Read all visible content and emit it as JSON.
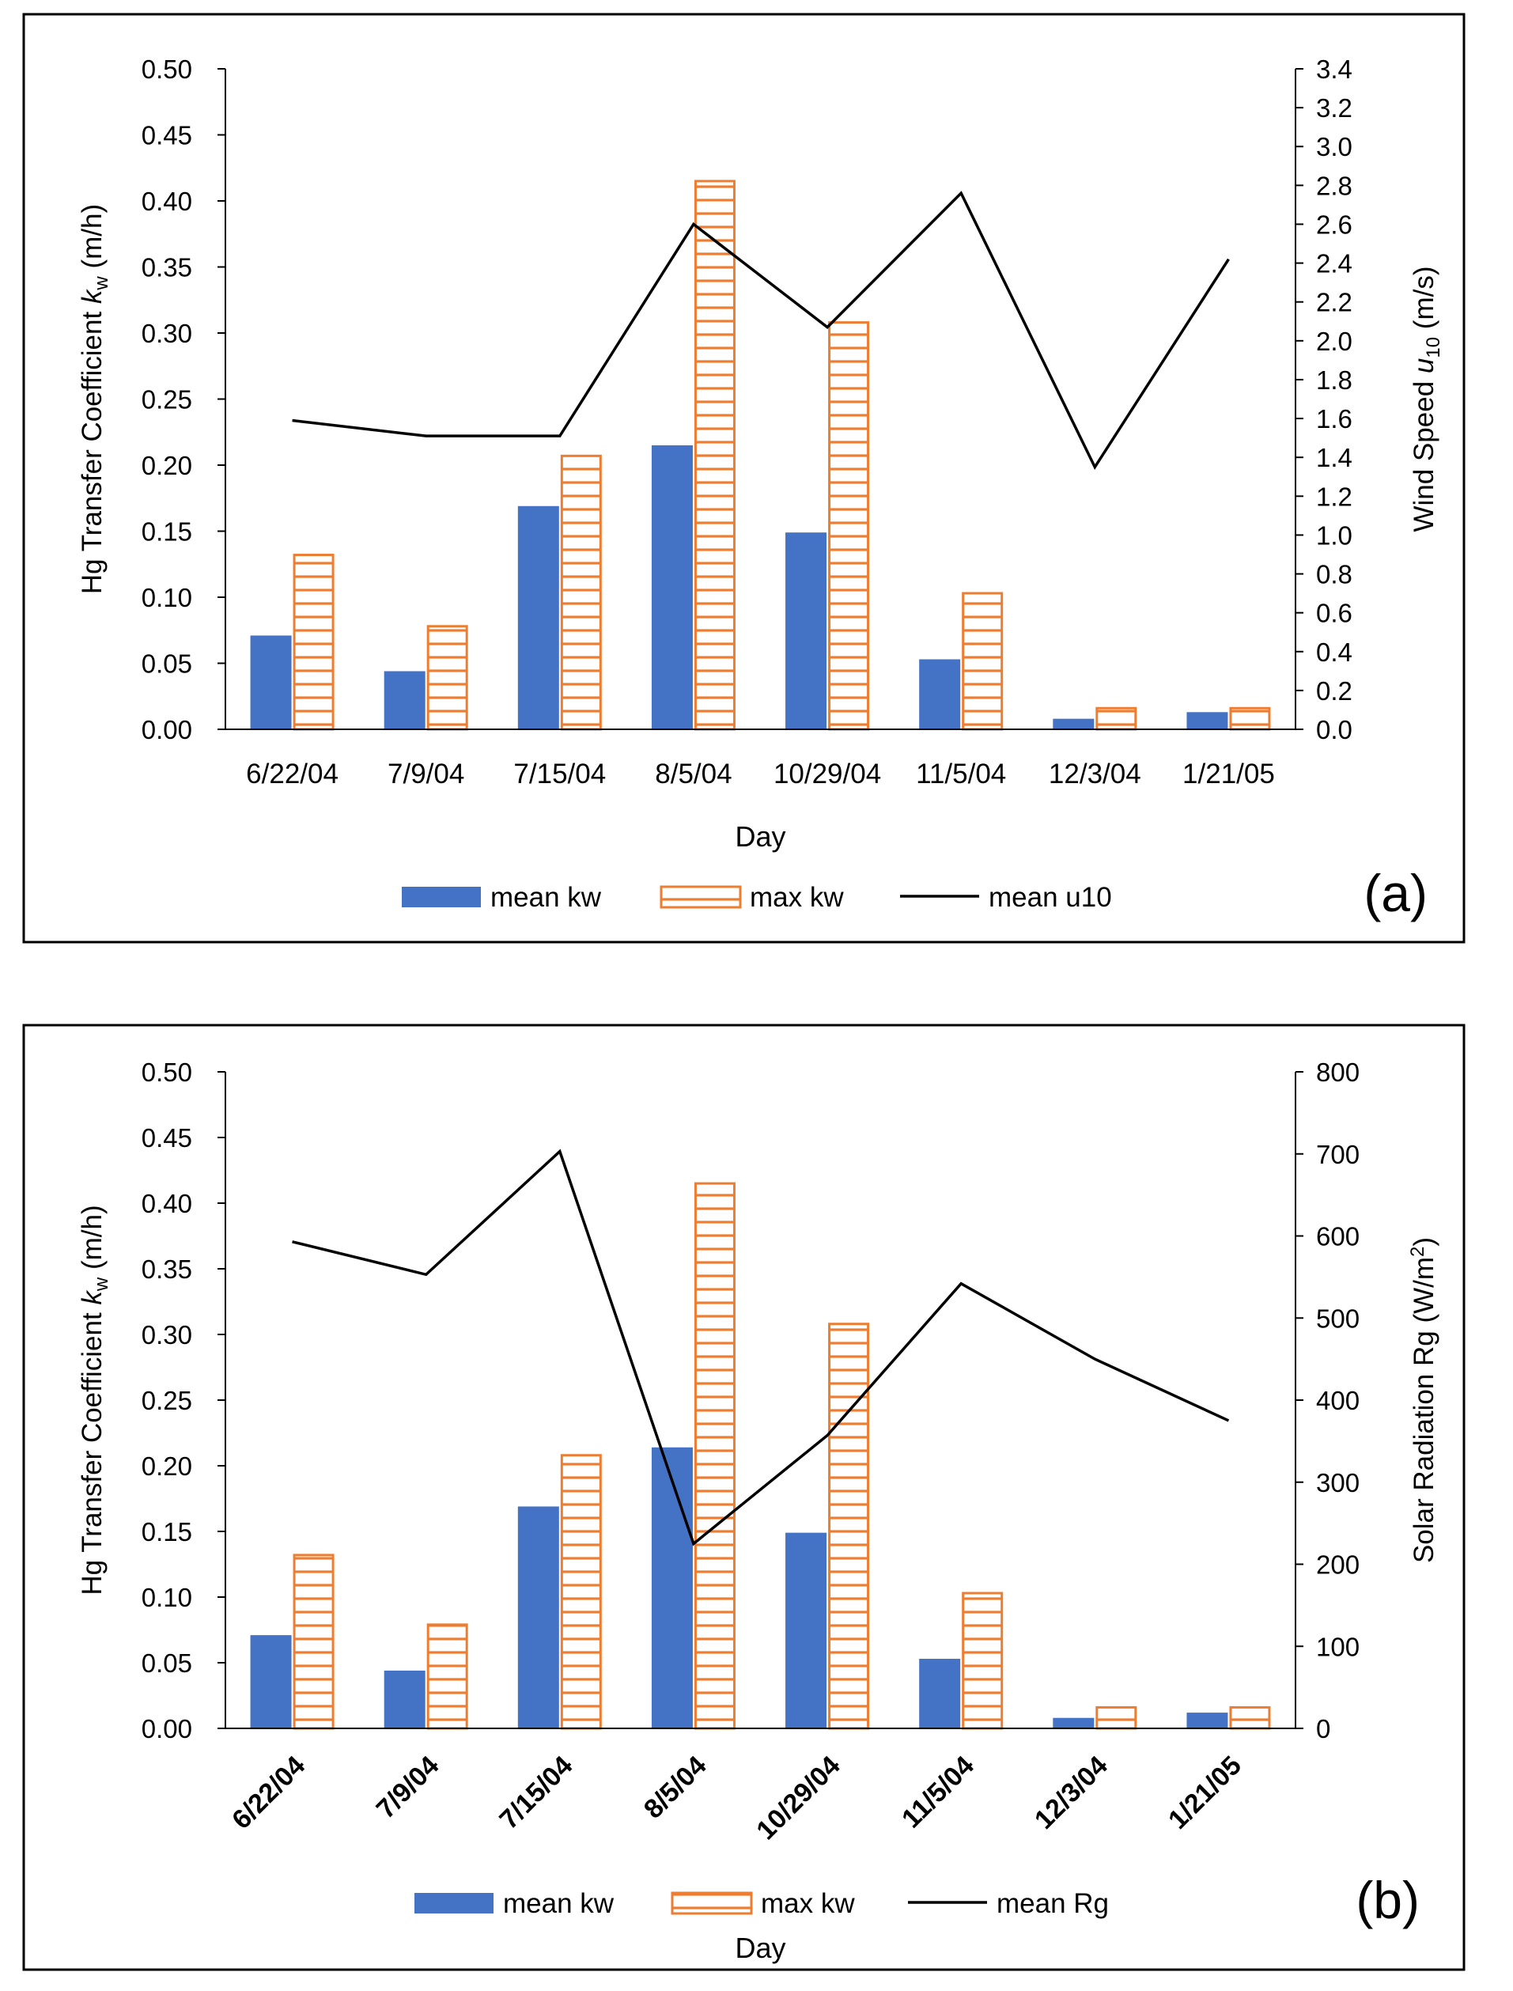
{
  "colors": {
    "mean_bar": "#4472C4",
    "max_bar": "#ED7D31",
    "line": "#000000",
    "axis": "#000000"
  },
  "chart_data": [
    {
      "type": "bar",
      "panel_label": "(a)",
      "categories": [
        "6/22/04",
        "7/9/04",
        "7/15/04",
        "8/5/04",
        "10/29/04",
        "11/5/04",
        "12/3/04",
        "1/21/05"
      ],
      "xlabel": "Day",
      "ylabel_left": {
        "main": "Hg Transfer Coefficient ",
        "italic": "k",
        "sub": "w",
        "tail": " (m/h)"
      },
      "ylabel_right": {
        "main": "Wind Speed ",
        "italic": "u",
        "sub": "10",
        "tail": " (m/s)"
      },
      "ylim_left": [
        0,
        0.5
      ],
      "yticks_left": [
        "0.00",
        "0.05",
        "0.10",
        "0.15",
        "0.20",
        "0.25",
        "0.30",
        "0.35",
        "0.40",
        "0.45",
        "0.50"
      ],
      "ylim_right": [
        0,
        3.4
      ],
      "yticks_right": [
        "0.0",
        "0.2",
        "0.4",
        "0.6",
        "0.8",
        "1.0",
        "1.2",
        "1.4",
        "1.6",
        "1.8",
        "2.0",
        "2.2",
        "2.4",
        "2.6",
        "2.8",
        "3.0",
        "3.2",
        "3.4"
      ],
      "series": [
        {
          "name": "mean kw",
          "kind": "bar",
          "axis": "left",
          "values": [
            0.071,
            0.044,
            0.169,
            0.215,
            0.149,
            0.053,
            0.008,
            0.013
          ]
        },
        {
          "name": "max kw",
          "kind": "bar-hatched",
          "axis": "left",
          "values": [
            0.132,
            0.078,
            0.207,
            0.415,
            0.308,
            0.103,
            0.016,
            0.016
          ]
        },
        {
          "name": "mean u10",
          "kind": "line",
          "axis": "right",
          "values": [
            1.59,
            1.51,
            1.51,
            2.6,
            2.07,
            2.76,
            1.35,
            2.42
          ]
        }
      ],
      "rotate_ticks": false
    },
    {
      "type": "bar",
      "panel_label": "(b)",
      "categories": [
        "6/22/04",
        "7/9/04",
        "7/15/04",
        "8/5/04",
        "10/29/04",
        "11/5/04",
        "12/3/04",
        "1/21/05"
      ],
      "xlabel": "Day",
      "ylabel_left": {
        "main": "Hg Transfer Coefficient ",
        "italic": "k",
        "sub": "w",
        "tail": " (m/h)"
      },
      "ylabel_right": {
        "main": "Solar Radiation Rg (W/m",
        "italic": "",
        "sup": "2",
        "tail": ")"
      },
      "ylim_left": [
        0,
        0.5
      ],
      "yticks_left": [
        "0.00",
        "0.05",
        "0.10",
        "0.15",
        "0.20",
        "0.25",
        "0.30",
        "0.35",
        "0.40",
        "0.45",
        "0.50"
      ],
      "ylim_right": [
        0,
        800
      ],
      "yticks_right": [
        "0",
        "100",
        "200",
        "300",
        "400",
        "500",
        "600",
        "700",
        "800"
      ],
      "series": [
        {
          "name": "mean kw",
          "kind": "bar",
          "axis": "left",
          "values": [
            0.071,
            0.044,
            0.169,
            0.214,
            0.149,
            0.053,
            0.008,
            0.012
          ]
        },
        {
          "name": "max kw",
          "kind": "bar-hatched",
          "axis": "left",
          "values": [
            0.132,
            0.079,
            0.208,
            0.415,
            0.308,
            0.103,
            0.016,
            0.016
          ]
        },
        {
          "name": "mean Rg",
          "kind": "line",
          "axis": "right",
          "values": [
            593,
            553,
            703,
            225,
            357,
            542,
            450,
            375
          ]
        }
      ],
      "rotate_ticks": true
    }
  ]
}
